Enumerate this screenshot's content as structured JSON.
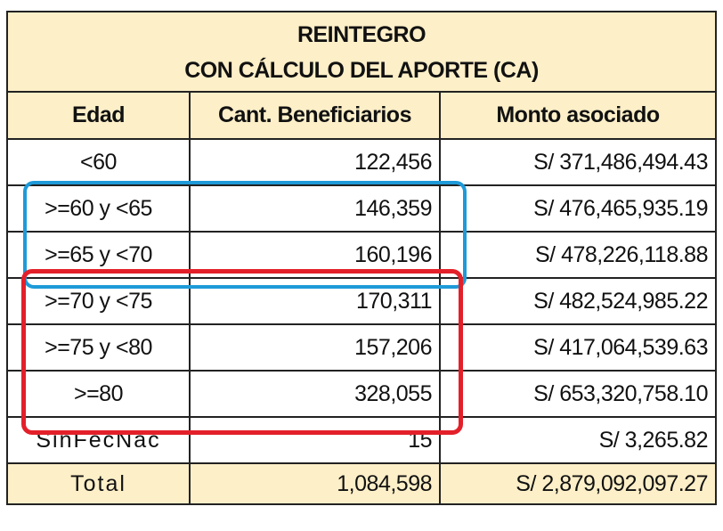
{
  "title": {
    "line1": "REINTEGRO",
    "line2": "CON CÁLCULO DEL APORTE (CA)"
  },
  "columns": [
    "Edad",
    "Cant. Beneficiarios",
    "Monto asociado"
  ],
  "rows": [
    {
      "edad": "<60",
      "cant": "122,456",
      "monto": "S/ 371,486,494.43"
    },
    {
      "edad": ">=60 y <65",
      "cant": "146,359",
      "monto": "S/ 476,465,935.19"
    },
    {
      "edad": ">=65 y <70",
      "cant": "160,196",
      "monto": "S/ 478,226,118.88"
    },
    {
      "edad": ">=70 y <75",
      "cant": "170,311",
      "monto": "S/ 482,524,985.22"
    },
    {
      "edad": ">=75 y <80",
      "cant": "157,206",
      "monto": "S/ 417,064,539.63"
    },
    {
      "edad": ">=80",
      "cant": "328,055",
      "monto": "S/ 653,320,758.10"
    },
    {
      "edad": "SinFecNac",
      "cant": "15",
      "monto": "S/ 3,265.82"
    }
  ],
  "total": {
    "label": "Total",
    "cant": "1,084,598",
    "monto": "S/ 2,879,092,097.27"
  },
  "highlights": {
    "blue": "#1e9ad8",
    "red": "#e3202a",
    "header_bg": "#fdefc8"
  }
}
